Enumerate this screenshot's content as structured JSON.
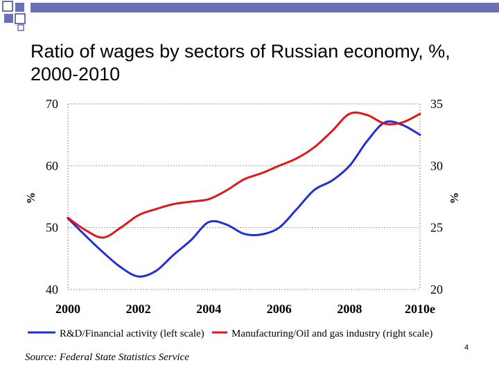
{
  "slide": {
    "title": "Ratio of wages by sectors of Russian economy, %, 2000-2010",
    "source": "Source: Federal State Statistics Service",
    "page_number": "4"
  },
  "colors": {
    "deco_bar": "#6b6fb5",
    "blue_series": "#1f2fd8",
    "red_series": "#e3151a",
    "grid": "#999999"
  },
  "chart_data": {
    "type": "line",
    "title": "",
    "x_ticks": [
      "2000",
      "2002",
      "2004",
      "2006",
      "2008",
      "2010e"
    ],
    "xlim": [
      2000,
      2010
    ],
    "left_axis": {
      "label": "%",
      "ylim": [
        40,
        70
      ],
      "ticks": [
        "70",
        "60",
        "50",
        "40"
      ]
    },
    "right_axis": {
      "label": "%",
      "ylim": [
        20,
        35
      ],
      "ticks": [
        "35",
        "30",
        "25",
        "20"
      ]
    },
    "grid": "horizontal dotted",
    "legend_position": "bottom",
    "series": [
      {
        "name": "R&D/Financial activity (left scale)",
        "axis": "left",
        "color": "#1f2fd8",
        "x": [
          2000,
          2000.5,
          2001,
          2001.5,
          2002,
          2002.5,
          2003,
          2003.5,
          2004,
          2004.5,
          2005,
          2005.5,
          2006,
          2006.5,
          2007,
          2007.5,
          2008,
          2008.5,
          2009,
          2009.5,
          2010
        ],
        "y": [
          51.5,
          48.7,
          46,
          43.6,
          42.1,
          43,
          45.6,
          48,
          50.9,
          50.5,
          49,
          48.9,
          50,
          53,
          56.1,
          57.6,
          60,
          64,
          67,
          66.6,
          65
        ]
      },
      {
        "name": "Manufacturing/Oil and gas industry (right scale)",
        "axis": "right",
        "color": "#e3151a",
        "x": [
          2000,
          2000.5,
          2001,
          2001.5,
          2002,
          2002.5,
          2003,
          2003.5,
          2004,
          2004.5,
          2005,
          2005.5,
          2006,
          2006.5,
          2007,
          2007.5,
          2008,
          2008.5,
          2009,
          2009.5,
          2010
        ],
        "y": [
          25.8,
          24.8,
          24.2,
          25,
          26,
          26.5,
          26.9,
          27.1,
          27.3,
          28,
          28.9,
          29.4,
          30,
          30.6,
          31.5,
          32.8,
          34.2,
          34.1,
          33.4,
          33.5,
          34.2
        ]
      }
    ]
  }
}
